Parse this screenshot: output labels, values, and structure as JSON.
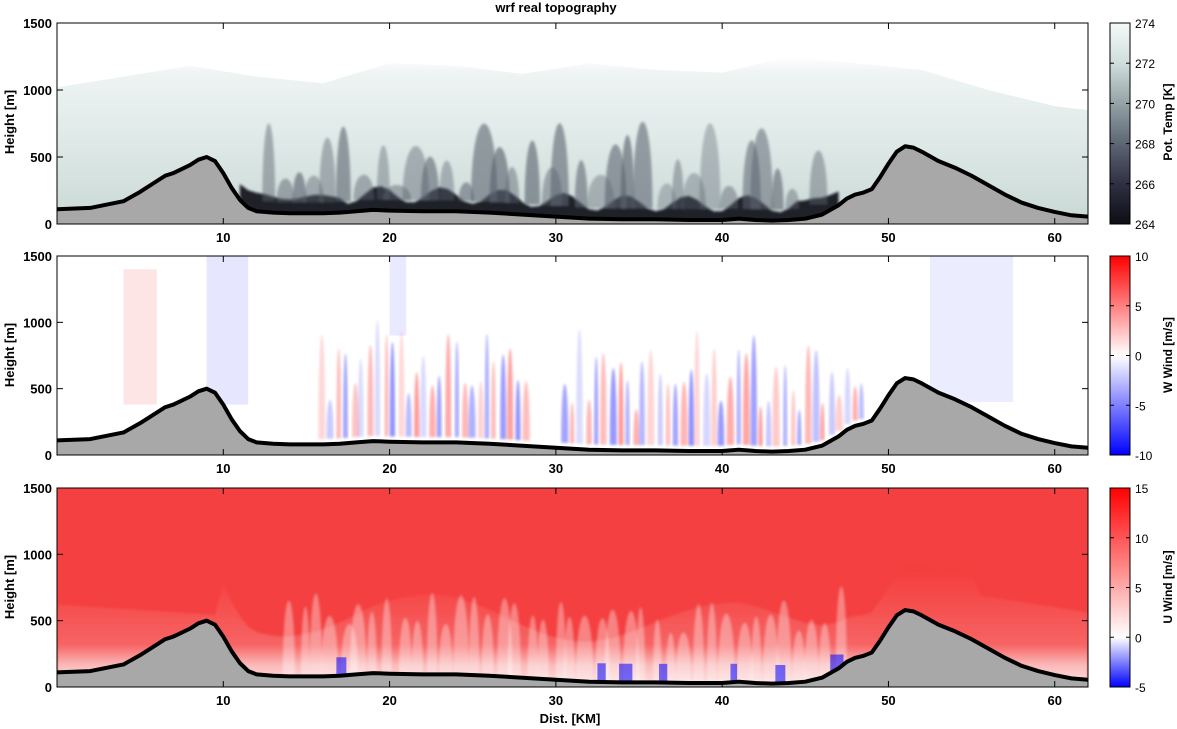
{
  "title": "wrf real topography",
  "colors": {
    "terrain_fill": "#a8a8a8",
    "terrain_line": "#000000",
    "neg_color": "#0000ff",
    "pos_color": "#ff0000",
    "theta_dark": "#0d0d14",
    "theta_light": "#f2f7f6"
  },
  "chart_data": [
    {
      "type": "heatmap",
      "name": "potential-temperature",
      "title": "wrf real topography",
      "xlabel": "",
      "ylabel": "Height [m]",
      "xlim": [
        0,
        62
      ],
      "ylim": [
        0,
        1500
      ],
      "xticks": [
        10,
        20,
        30,
        40,
        50,
        60
      ],
      "yticks": [
        0,
        500,
        1000,
        1500
      ],
      "colorbar": {
        "label": "Pot. Temp [K]",
        "min": 264,
        "max": 274,
        "ticks": [
          264,
          266,
          268,
          270,
          272,
          274
        ]
      }
    },
    {
      "type": "heatmap",
      "name": "w-wind",
      "xlabel": "",
      "ylabel": "Height [m]",
      "xlim": [
        0,
        62
      ],
      "ylim": [
        0,
        1500
      ],
      "xticks": [
        10,
        20,
        30,
        40,
        50,
        60
      ],
      "yticks": [
        0,
        500,
        1000,
        1500
      ],
      "colorbar": {
        "label": "W Wind [m/s]",
        "min": -10,
        "max": 10,
        "ticks": [
          -10,
          -5,
          0,
          5,
          10
        ]
      }
    },
    {
      "type": "heatmap",
      "name": "u-wind",
      "xlabel": "Dist. [KM]",
      "ylabel": "Height [m]",
      "xlim": [
        0,
        62
      ],
      "ylim": [
        0,
        1500
      ],
      "xticks": [
        10,
        20,
        30,
        40,
        50,
        60
      ],
      "yticks": [
        0,
        500,
        1000,
        1500
      ],
      "colorbar": {
        "label": "U Wind [m/s]",
        "min": -5,
        "max": 15,
        "ticks": [
          -5,
          0,
          5,
          10,
          15
        ]
      }
    }
  ],
  "terrain": {
    "x_km": [
      0,
      2,
      4,
      5,
      6,
      6.5,
      7,
      8,
      8.5,
      9,
      9.5,
      10,
      10.5,
      11,
      11.5,
      12,
      13,
      14,
      15,
      16,
      17,
      18,
      19,
      20,
      22,
      24,
      26,
      28,
      30,
      32,
      34,
      36,
      38,
      40,
      41,
      42,
      43,
      44,
      45,
      46,
      47,
      47.5,
      48,
      48.5,
      49,
      49.5,
      50,
      50.5,
      51,
      51.5,
      52,
      53,
      54,
      55,
      56,
      57,
      58,
      59,
      60,
      61,
      62
    ],
    "height_m": [
      110,
      120,
      170,
      240,
      320,
      360,
      380,
      440,
      480,
      500,
      470,
      380,
      270,
      180,
      120,
      95,
      85,
      80,
      80,
      80,
      85,
      95,
      105,
      100,
      95,
      95,
      85,
      70,
      55,
      40,
      35,
      35,
      30,
      30,
      40,
      30,
      25,
      30,
      40,
      70,
      140,
      190,
      220,
      235,
      260,
      350,
      450,
      540,
      580,
      570,
      540,
      470,
      420,
      360,
      290,
      220,
      160,
      120,
      90,
      65,
      55
    ]
  }
}
